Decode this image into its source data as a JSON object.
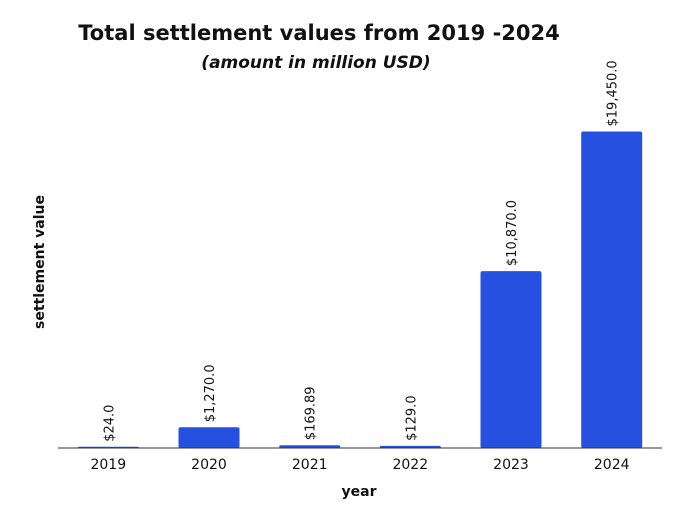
{
  "chart_data": {
    "type": "bar",
    "title": "Total settlement values from 2019 -2024",
    "subtitle": "(amount in million USD)",
    "xlabel": "year",
    "ylabel": "settlement value",
    "categories": [
      "2019",
      "2020",
      "2021",
      "2022",
      "2023",
      "2024"
    ],
    "values": [
      24.0,
      1270.0,
      169.89,
      129.0,
      10870.0,
      19450.0
    ],
    "data_labels": [
      "$24.0",
      "$1,270.0",
      "$169.89",
      "$129.0",
      "$10,870.0",
      "$19,450.0"
    ],
    "ylim": [
      0,
      22000
    ],
    "grid": false,
    "bar_color": "#2550E0"
  }
}
